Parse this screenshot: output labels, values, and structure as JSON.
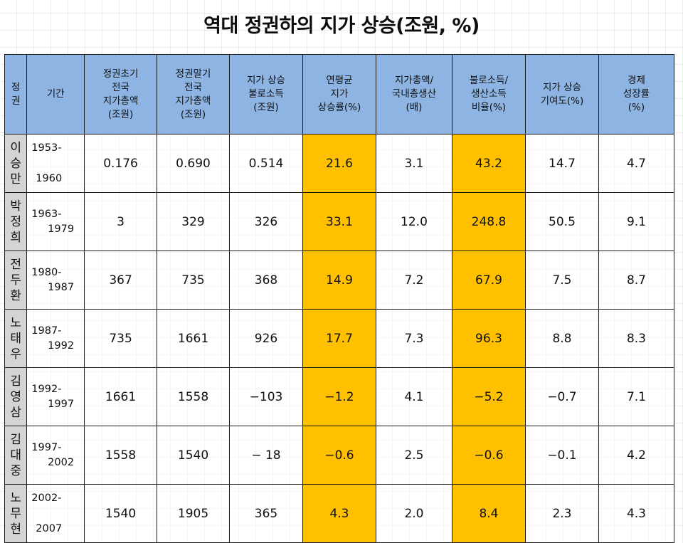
{
  "title": "역대 정권하의 지가 상승(조원, %)",
  "headers": {
    "regime": [
      "정",
      "권"
    ],
    "period": [
      "기간"
    ],
    "initial": [
      "정권초기",
      "전국",
      "지가총액",
      "(조원)"
    ],
    "final": [
      "정권말기",
      "전국",
      "지가총액",
      "(조원)"
    ],
    "unearned": [
      "지가 상승",
      "불로소득",
      "(조원)"
    ],
    "annual": [
      "연평균",
      "지가",
      "상승률(%)"
    ],
    "ratio_gdp": [
      "지가총액/",
      "국내총생산",
      "(배)"
    ],
    "ratio_income": [
      "불로소득/",
      "생산소득",
      "비율(%)"
    ],
    "contribution": [
      "지가 상승",
      "기여도(%)"
    ],
    "growth": [
      "경제",
      "성장률",
      "(%)"
    ]
  },
  "rows": [
    {
      "regime": [
        "이",
        "승",
        "만"
      ],
      "period_start": "1953-",
      "period_end": "1960",
      "initial": "0.176",
      "final": "0.690",
      "unearned": "0.514",
      "annual": "21.6",
      "ratio_gdp": "3.1",
      "ratio_income": "43.2",
      "contribution": "14.7",
      "growth": "4.7"
    },
    {
      "regime": [
        "박",
        "정",
        "희"
      ],
      "period_start": "1963-",
      "period_end": "1979",
      "initial": "3",
      "final": "329",
      "unearned": "326",
      "annual": "33.1",
      "ratio_gdp": "12.0",
      "ratio_income": "248.8",
      "contribution": "50.5",
      "growth": "9.1"
    },
    {
      "regime": [
        "전",
        "두",
        "환"
      ],
      "period_start": "1980-",
      "period_end": "1987",
      "initial": "367",
      "final": "735",
      "unearned": "368",
      "annual": "14.9",
      "ratio_gdp": "7.2",
      "ratio_income": "67.9",
      "contribution": "7.5",
      "growth": "8.7"
    },
    {
      "regime": [
        "노",
        "태",
        "우"
      ],
      "period_start": "1987-",
      "period_end": "1992",
      "initial": "735",
      "final": "1661",
      "unearned": "926",
      "annual": "17.7",
      "ratio_gdp": "7.3",
      "ratio_income": "96.3",
      "contribution": "8.8",
      "growth": "8.3"
    },
    {
      "regime": [
        "김",
        "영",
        "삼"
      ],
      "period_start": "1992-",
      "period_end": "1997",
      "initial": "1661",
      "final": "1558",
      "unearned": "−103",
      "annual": "−1.2",
      "ratio_gdp": "4.1",
      "ratio_income": "−5.2",
      "contribution": "−0.7",
      "growth": "7.1"
    },
    {
      "regime": [
        "김",
        "대",
        "중"
      ],
      "period_start": "1997-",
      "period_end": "2002",
      "initial": "1558",
      "final": "1540",
      "unearned": "− 18",
      "annual": "−0.6",
      "ratio_gdp": "2.5",
      "ratio_income": "−0.6",
      "contribution": "−0.1",
      "growth": "4.2"
    },
    {
      "regime": [
        "노",
        "무",
        "현"
      ],
      "period_start": "2002-",
      "period_end": "2007",
      "initial": "1540",
      "final": "1905",
      "unearned": "365",
      "annual": "4.3",
      "ratio_gdp": "2.0",
      "ratio_income": "8.4",
      "contribution": "2.3",
      "growth": "4.3"
    }
  ],
  "colors": {
    "header_bg": "#8db4e2",
    "highlight": "#ffc000",
    "regime_bg": "#d4d4d4"
  }
}
